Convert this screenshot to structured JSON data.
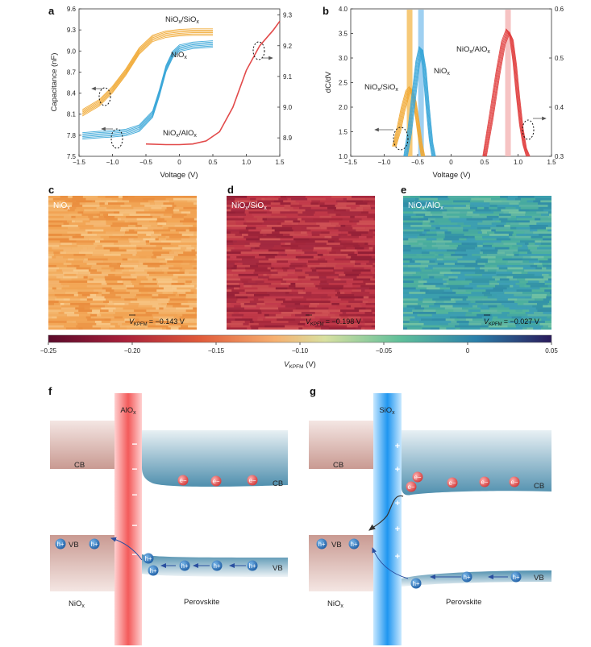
{
  "chart_data": [
    {
      "panel": "a",
      "type": "line",
      "xlabel": "Voltage (V)",
      "ylabel": "Capacitance (nF)",
      "xlim": [
        -1.5,
        1.5
      ],
      "ylim": [
        7.5,
        9.6
      ],
      "y2lim": [
        8.84,
        9.32
      ],
      "xticks": [
        "−1.5",
        "−1.0",
        "−0.5",
        "0",
        "0.5",
        "1.0",
        "1.5"
      ],
      "yticks": [
        "7.5",
        "7.8",
        "8.1",
        "8.4",
        "8.7",
        "9.0",
        "9.3",
        "9.6"
      ],
      "y2ticks": [
        "8.9",
        "9.0",
        "9.1",
        "9.2",
        "9.3"
      ],
      "series": [
        {
          "name": "NiOx/SiOx",
          "axis": "left",
          "color": "#f0a830",
          "x": [
            -1.45,
            -1.2,
            -1.0,
            -0.8,
            -0.6,
            -0.4,
            -0.2,
            0.0,
            0.2,
            0.5
          ],
          "y": [
            8.12,
            8.26,
            8.45,
            8.7,
            9.0,
            9.18,
            9.24,
            9.26,
            9.27,
            9.27
          ]
        },
        {
          "name": "NiOx",
          "axis": "left",
          "color": "#3aa6d8",
          "x": [
            -1.45,
            -1.2,
            -1.0,
            -0.8,
            -0.6,
            -0.4,
            -0.3,
            -0.2,
            -0.1,
            0.0,
            0.2,
            0.5
          ],
          "y": [
            7.79,
            7.81,
            7.82,
            7.84,
            7.9,
            8.1,
            8.4,
            8.75,
            8.95,
            9.04,
            9.08,
            9.1
          ]
        },
        {
          "name": "NiOx/AlOx",
          "axis": "right",
          "color": "#e04040",
          "x": [
            -0.5,
            -0.2,
            0.0,
            0.2,
            0.4,
            0.6,
            0.8,
            1.0,
            1.2,
            1.4,
            1.5
          ],
          "y": [
            8.88,
            8.878,
            8.878,
            8.88,
            8.89,
            8.92,
            9.0,
            9.12,
            9.2,
            9.25,
            9.28
          ]
        }
      ]
    },
    {
      "panel": "b",
      "type": "line",
      "xlabel": "Voltage (V)",
      "ylabel": "dC/dV",
      "xlim": [
        -1.5,
        1.5
      ],
      "ylim": [
        1.0,
        4.0
      ],
      "y2lim": [
        0.3,
        0.6
      ],
      "xticks": [
        "−1.5",
        "−1.0",
        "−0.5",
        "0",
        "0.5",
        "1.0",
        "1.5"
      ],
      "yticks": [
        "1.0",
        "1.5",
        "2.0",
        "2.5",
        "3.0",
        "3.5",
        "4.0"
      ],
      "y2ticks": [
        "0.3",
        "0.4",
        "0.5",
        "0.6"
      ],
      "series": [
        {
          "name": "NiOx/SiOx",
          "axis": "left",
          "color": "#f0a830",
          "x": [
            -0.85,
            -0.78,
            -0.72,
            -0.65,
            -0.6,
            -0.55,
            -0.5,
            -0.46,
            -0.42
          ],
          "y": [
            1.2,
            1.55,
            1.95,
            2.3,
            2.38,
            2.15,
            1.7,
            1.3,
            1.0
          ]
        },
        {
          "name": "NiOx",
          "axis": "left",
          "color": "#3aa6d8",
          "x": [
            -0.68,
            -0.62,
            -0.56,
            -0.5,
            -0.45,
            -0.4,
            -0.35,
            -0.3,
            -0.26
          ],
          "y": [
            1.0,
            1.5,
            2.2,
            2.9,
            3.2,
            2.8,
            2.0,
            1.3,
            1.0
          ]
        },
        {
          "name": "NiOx/AlOx",
          "axis": "right",
          "color": "#e04040",
          "x": [
            0.5,
            0.6,
            0.7,
            0.78,
            0.85,
            0.9,
            0.95,
            1.0,
            1.05,
            1.1,
            1.15
          ],
          "y": [
            0.3,
            0.38,
            0.47,
            0.53,
            0.555,
            0.54,
            0.49,
            0.42,
            0.36,
            0.32,
            0.3
          ]
        }
      ],
      "highlight_bands": [
        {
          "x": -0.62,
          "color": "#f5c060"
        },
        {
          "x": -0.45,
          "color": "#8ec8ef"
        },
        {
          "x": 0.85,
          "color": "#f4b8b8"
        }
      ]
    },
    {
      "panel": "c-e",
      "type": "heatmap",
      "colorbar_label": "V_KPFM (V)",
      "colorbar_ticks": [
        "−0.25",
        "−0.20",
        "−0.15",
        "−0.10",
        "−0.05",
        "0",
        "0.05"
      ],
      "colorbar_range": [
        -0.25,
        0.05
      ],
      "maps": [
        {
          "panel": "c",
          "label": "NiOx",
          "value_text": "= −0.143 V",
          "mean": -0.143,
          "base_color": "#f0a050"
        },
        {
          "panel": "d",
          "label": "NiOx/SiOx",
          "value_text": "= −0.198 V",
          "mean": -0.198,
          "base_color": "#b83040"
        },
        {
          "panel": "e",
          "label": "NiOx/AlOx",
          "value_text": "= −0.027 V",
          "mean": -0.027,
          "base_color": "#3a9fa6"
        }
      ]
    }
  ],
  "panel_letters": [
    "a",
    "b",
    "c",
    "d",
    "e",
    "f",
    "g"
  ],
  "map_value_symbol": "V",
  "map_value_subscript": "KPFM",
  "diagrams": {
    "f": {
      "barrier": "AlOx",
      "left_cb": "CB",
      "left_vb": "VB",
      "right_cb": "CB",
      "right_vb": "VB",
      "left_material": "NiOx",
      "right_material": "Perovskite",
      "charge_sign": "−",
      "electron": "e−",
      "hole": "h+"
    },
    "g": {
      "barrier": "SiOx",
      "left_cb": "CB",
      "left_vb": "VB",
      "right_cb": "CB",
      "right_vb": "VB",
      "left_material": "NiOx",
      "right_material": "Perovskite",
      "charge_sign": "+",
      "electron": "e−",
      "hole": "h+"
    }
  },
  "colors": {
    "orange": "#f0a830",
    "blue": "#3aa6d8",
    "red": "#e04040",
    "alox_bar": "#f36a6a",
    "siox_bar": "#2a9ff0",
    "band_blue": "#4f8fae",
    "band_pink": "#d9b1aa"
  }
}
